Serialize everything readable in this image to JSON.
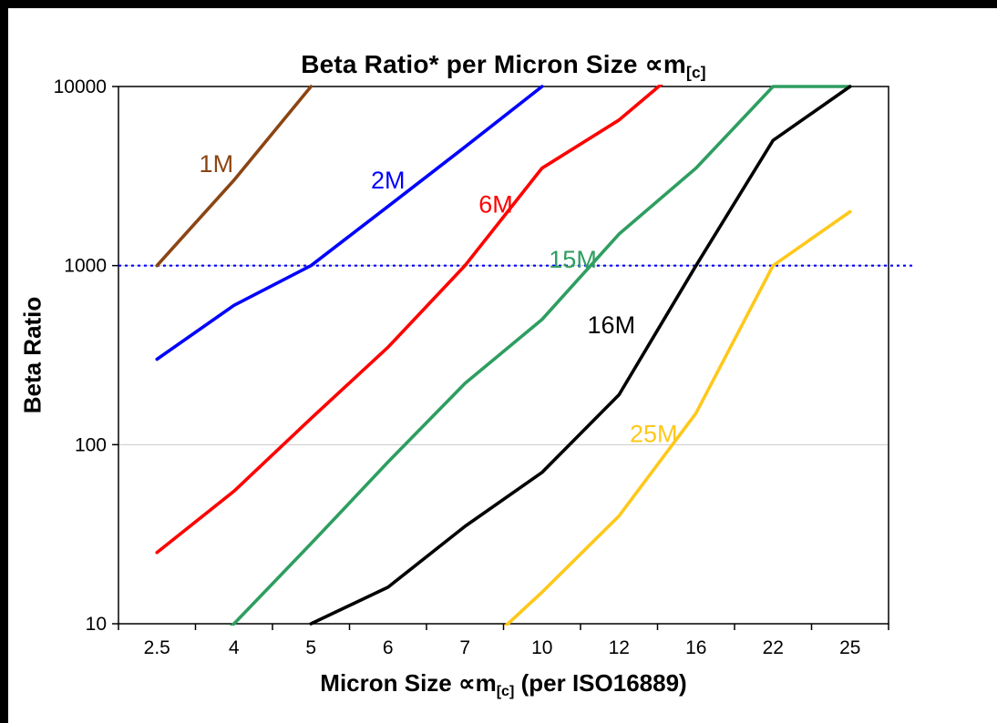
{
  "chart_data": {
    "type": "line",
    "title_text": "Beta Ratio* per Micron Size ∝m",
    "title_sub": "[c]",
    "ylabel": "Beta Ratio",
    "xlabel_pre": "Micron Size ∝m",
    "xlabel_sub": "[c]",
    "xlabel_post": " (per ISO16889)",
    "x_categories": [
      "2.5",
      "4",
      "5",
      "6",
      "7",
      "10",
      "12",
      "16",
      "22",
      "25"
    ],
    "y_ticks": [
      "10",
      "100",
      "1000",
      "10000"
    ],
    "y_tick_values": [
      10,
      100,
      1000,
      10000
    ],
    "y_gridlines": [
      100,
      1000
    ],
    "ylim": [
      10,
      10000
    ],
    "y_scale": "log",
    "grid_on": true,
    "legend_position": "inline-labels",
    "grid_color": "#c9c9c9",
    "axis_color": "#000000",
    "background_color": "#ffffff",
    "reference_line": {
      "y": 1000,
      "color": "#0000ff",
      "style": "dotted"
    },
    "series": [
      {
        "name": "1M",
        "color": "#8B4513",
        "values": [
          1000,
          3000,
          10000,
          null,
          null,
          null,
          null,
          null,
          null,
          null
        ]
      },
      {
        "name": "2M",
        "color": "#0000FF",
        "values": [
          300,
          600,
          1000,
          2140,
          4600,
          10000,
          null,
          null,
          null,
          null
        ]
      },
      {
        "name": "6M",
        "color": "#FF0000",
        "values": [
          25,
          55,
          140,
          350,
          1000,
          3500,
          6500,
          15000,
          null,
          null
        ]
      },
      {
        "name": "15M",
        "color": "#2E9E60",
        "values": [
          4,
          10,
          28,
          80,
          220,
          500,
          1500,
          3500,
          10000,
          10000
        ]
      },
      {
        "name": "16M",
        "color": "#000000",
        "values": [
          null,
          null,
          10,
          16,
          35,
          70,
          190,
          1000,
          5000,
          10000
        ]
      },
      {
        "name": "25M",
        "color": "#FFC81A",
        "values": [
          null,
          null,
          null,
          null,
          6,
          15,
          40,
          150,
          1000,
          2000
        ]
      }
    ],
    "series_labels": [
      {
        "text": "1M",
        "color": "#8B4513",
        "x": 0.77,
        "y": 3700
      },
      {
        "text": "2M",
        "color": "#0000FF",
        "x": 3.0,
        "y": 3000
      },
      {
        "text": "6M",
        "color": "#FF0000",
        "x": 4.4,
        "y": 2200
      },
      {
        "text": "15M",
        "color": "#2E9E60",
        "x": 5.4,
        "y": 1080
      },
      {
        "text": "16M",
        "color": "#000000",
        "x": 5.9,
        "y": 465
      },
      {
        "text": "25M",
        "color": "#FFC81A",
        "x": 6.45,
        "y": 115
      }
    ]
  }
}
